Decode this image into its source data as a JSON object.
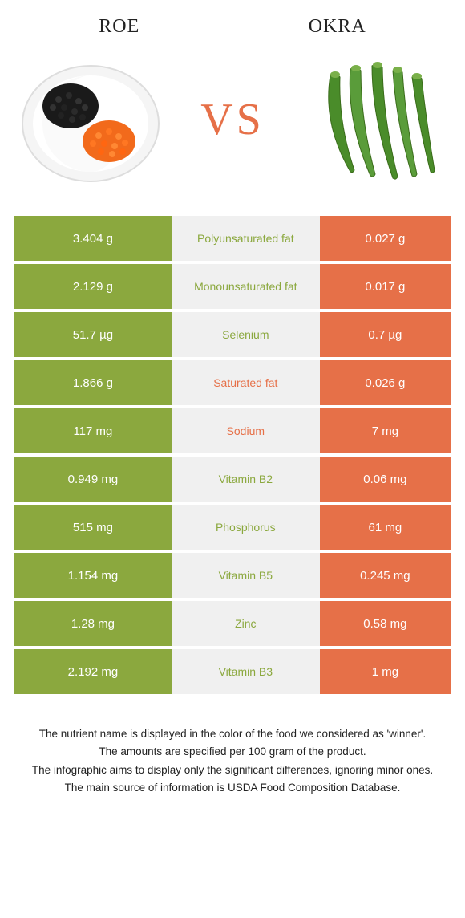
{
  "colors": {
    "left_food": "#8ba83e",
    "right_food": "#e67048",
    "mid_bg": "#f0f0f0",
    "vs": "#e67048"
  },
  "header": {
    "left_title": "Roe",
    "right_title": "Okra",
    "vs_text": "VS"
  },
  "rows": [
    {
      "left": "3.404 g",
      "nutrient": "Polyunsaturated fat",
      "right": "0.027 g",
      "winner": "left"
    },
    {
      "left": "2.129 g",
      "nutrient": "Monounsaturated fat",
      "right": "0.017 g",
      "winner": "left"
    },
    {
      "left": "51.7 µg",
      "nutrient": "Selenium",
      "right": "0.7 µg",
      "winner": "left"
    },
    {
      "left": "1.866 g",
      "nutrient": "Saturated fat",
      "right": "0.026 g",
      "winner": "right"
    },
    {
      "left": "117 mg",
      "nutrient": "Sodium",
      "right": "7 mg",
      "winner": "right"
    },
    {
      "left": "0.949 mg",
      "nutrient": "Vitamin B2",
      "right": "0.06 mg",
      "winner": "left"
    },
    {
      "left": "515 mg",
      "nutrient": "Phosphorus",
      "right": "61 mg",
      "winner": "left"
    },
    {
      "left": "1.154 mg",
      "nutrient": "Vitamin B5",
      "right": "0.245 mg",
      "winner": "left"
    },
    {
      "left": "1.28 mg",
      "nutrient": "Zinc",
      "right": "0.58 mg",
      "winner": "left"
    },
    {
      "left": "2.192 mg",
      "nutrient": "Vitamin B3",
      "right": "1 mg",
      "winner": "left"
    }
  ],
  "footer": {
    "line1": "The nutrient name is displayed in the color of the food we considered as 'winner'.",
    "line2": "The amounts are specified per 100 gram of the product.",
    "line3": "The infographic aims to display only the significant differences, ignoring minor ones.",
    "line4": "The main source of information is USDA Food Composition Database."
  }
}
